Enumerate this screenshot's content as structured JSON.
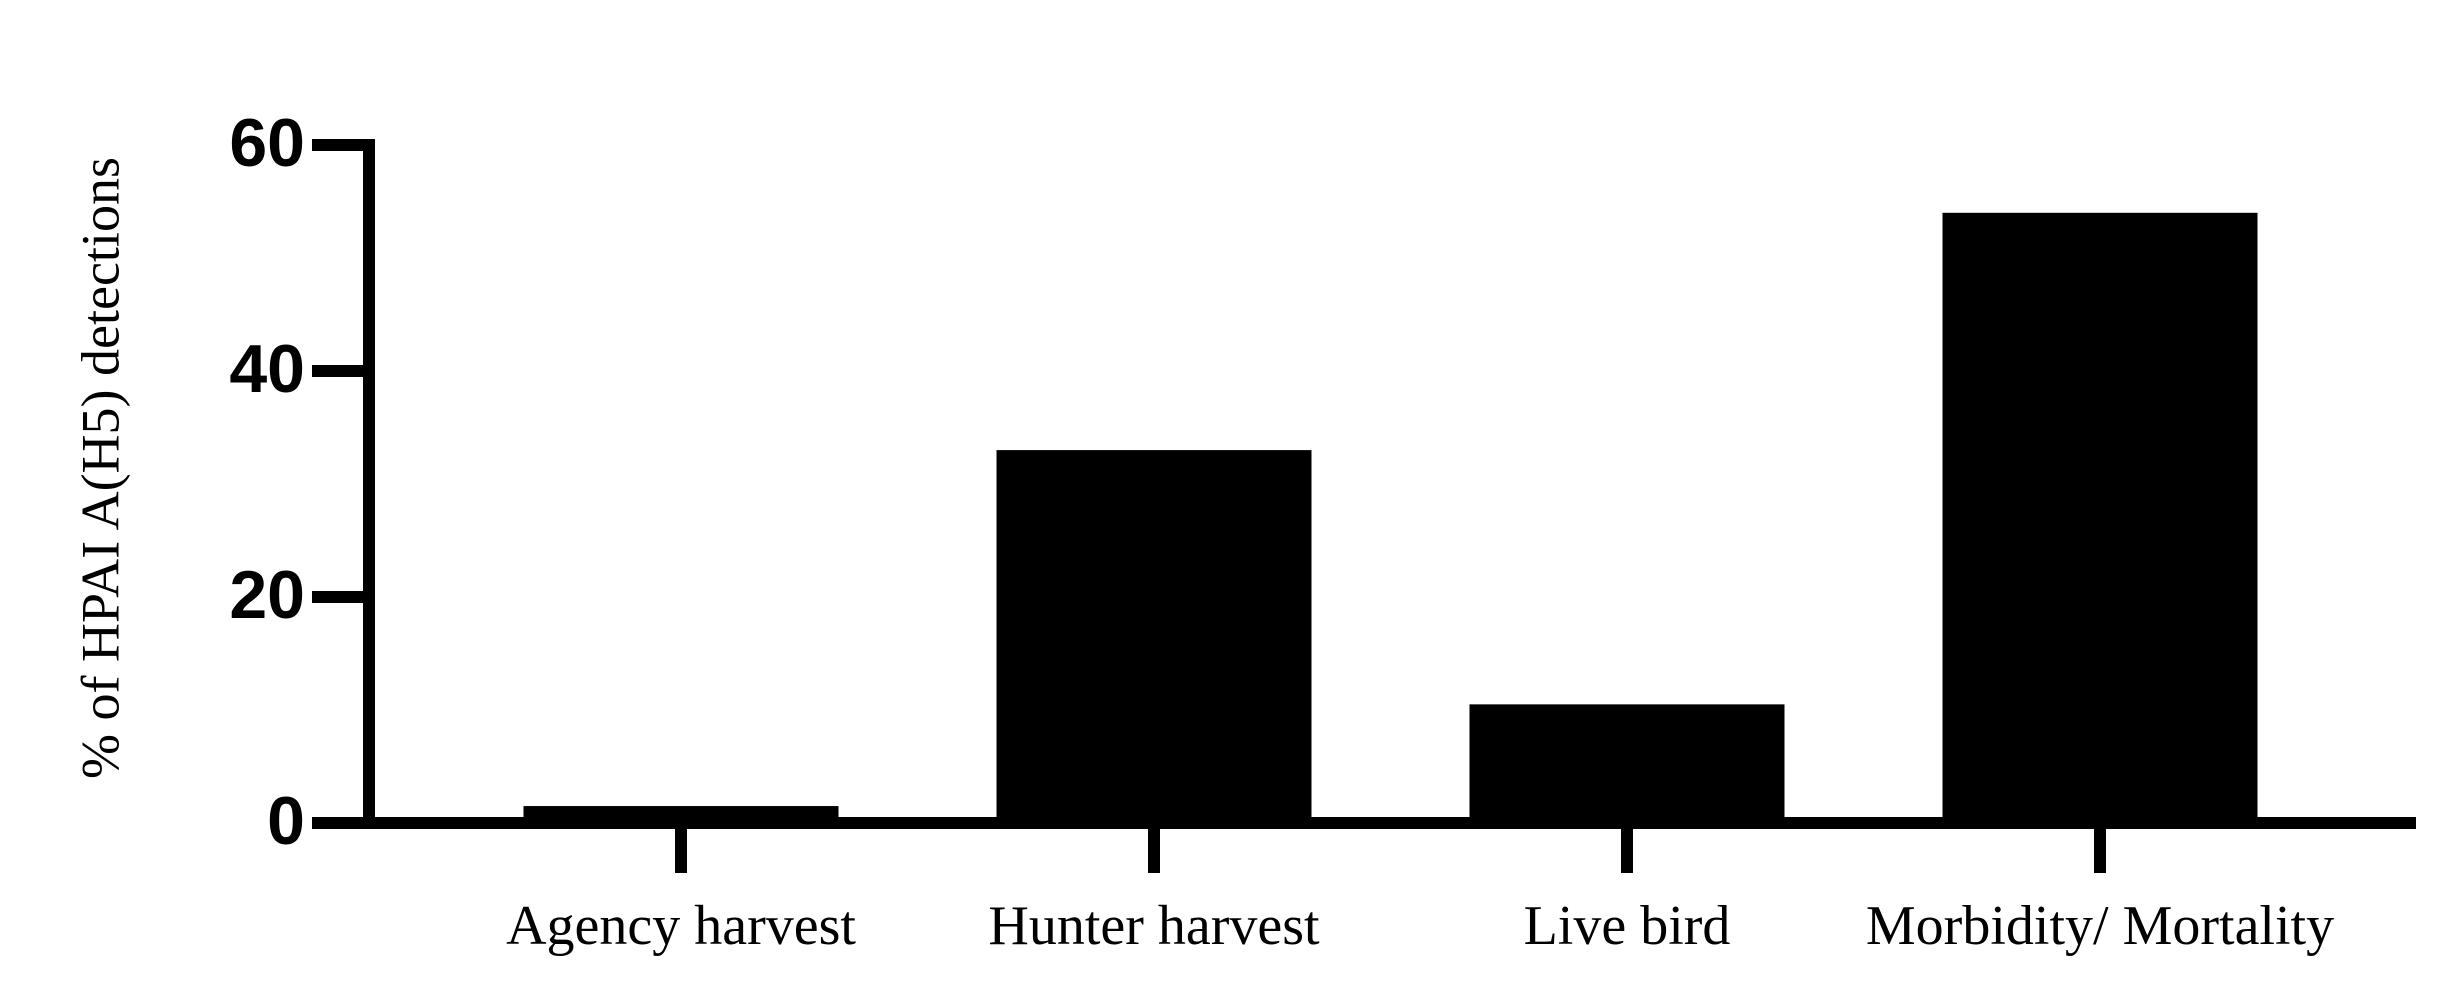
{
  "chart_data": {
    "type": "bar",
    "y_label": "% of HPAI A(H5) detections",
    "categories": [
      "Agency harvest",
      "Hunter harvest",
      "Live bird",
      "Morbidity/ Mortality"
    ],
    "values": [
      1.5,
      33,
      10.5,
      54
    ],
    "color": "#000000",
    "ylim": [
      0,
      60
    ],
    "yticks": [
      0,
      20,
      40,
      60
    ],
    "grid": false
  }
}
